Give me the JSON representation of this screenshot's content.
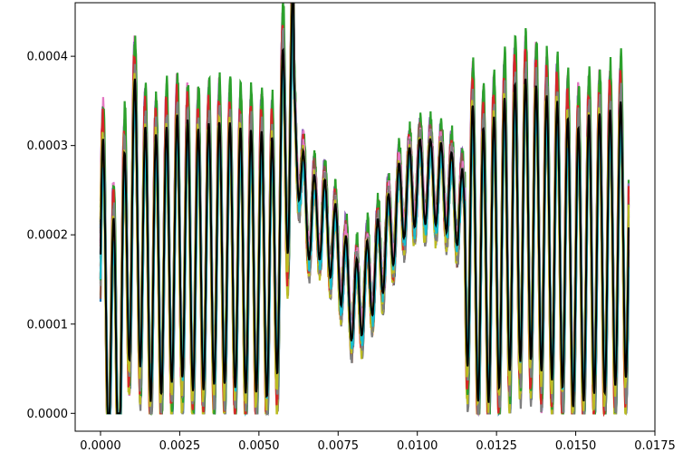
{
  "chart_data": {
    "type": "line",
    "title": "",
    "xlabel": "",
    "ylabel": "",
    "xlim": [
      -0.0008,
      0.0175
    ],
    "ylim": [
      -2e-05,
      0.00046
    ],
    "x_ticks": [
      0.0,
      0.0025,
      0.005,
      0.0075,
      0.01,
      0.0125,
      0.015,
      0.0175
    ],
    "x_tick_labels": [
      "0.0000",
      "0.0025",
      "0.0050",
      "0.0075",
      "0.0100",
      "0.0125",
      "0.0150",
      "0.0175"
    ],
    "y_ticks": [
      0.0,
      0.0001,
      0.0002,
      0.0003,
      0.0004
    ],
    "y_tick_labels": [
      "0.0000",
      "0.0001",
      "0.0002",
      "0.0003",
      "0.0004"
    ],
    "grid": false,
    "legend": "none",
    "x_range": [
      0.0,
      0.01667
    ],
    "series_colors": [
      "#1f77b4",
      "#ff7f0e",
      "#2ca02c",
      "#d62728",
      "#9467bd",
      "#8c564b",
      "#e377c2",
      "#7f7f7f",
      "#bcbd22",
      "#17becf"
    ],
    "mean_color": "#000000",
    "mean_series": {
      "x": [
        0.0,
        0.0005,
        0.001,
        0.0015,
        0.002,
        0.0025,
        0.003,
        0.0035,
        0.004,
        0.0045,
        0.005,
        0.0055,
        0.006,
        0.0065,
        0.007,
        0.0075,
        0.008,
        0.0085,
        0.009,
        0.0095,
        0.01,
        0.0105,
        0.011,
        0.0115,
        0.012,
        0.0125,
        0.013,
        0.0135,
        0.014,
        0.0145,
        0.015,
        0.0155,
        0.016,
        0.01667
      ],
      "y": [
        0.00018,
        5e-05,
        0.00024,
        0.00016,
        0.00017,
        0.00019,
        0.00017,
        0.00018,
        0.00018,
        0.00017,
        0.00017,
        0.00016,
        0.00036,
        0.00022,
        0.00022,
        0.00018,
        0.00012,
        0.00015,
        0.00019,
        0.00024,
        0.00026,
        0.00026,
        0.00025,
        0.00022,
        0.00016,
        0.00018,
        0.00021,
        0.00022,
        0.0002,
        0.00019,
        0.00016,
        0.00018,
        0.00018,
        0.0002
      ]
    }
  }
}
